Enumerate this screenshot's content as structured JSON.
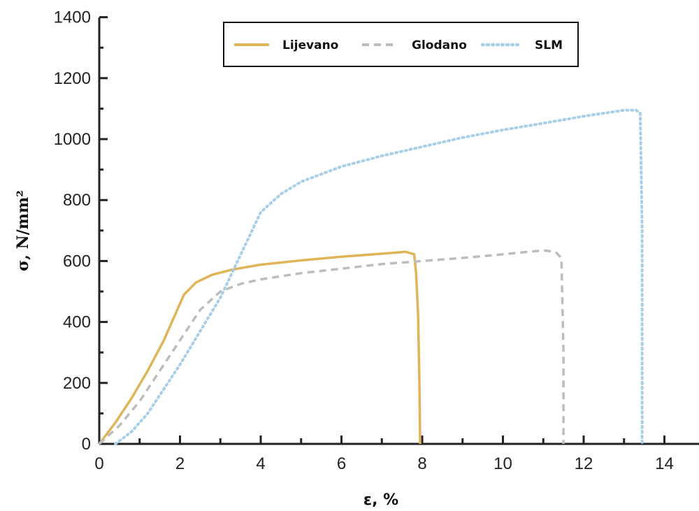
{
  "chart_data": {
    "type": "line",
    "xlabel": "ε, %",
    "ylabel": "σ, N/mm²",
    "xlim": [
      0,
      15
    ],
    "ylim": [
      0,
      1400
    ],
    "x_ticks": [
      0,
      2,
      4,
      6,
      8,
      10,
      12,
      14
    ],
    "y_ticks": [
      0,
      200,
      400,
      600,
      800,
      1000,
      1200,
      1400
    ],
    "legend_position": "top-center",
    "series": [
      {
        "name": "Lijevano",
        "color": "#e0b458",
        "style": "solid",
        "x": [
          0,
          0.4,
          0.8,
          1.2,
          1.6,
          1.9,
          2.1,
          2.4,
          2.8,
          3.3,
          4.0,
          5.0,
          6.0,
          7.0,
          7.6,
          7.8,
          7.85,
          7.9,
          7.93,
          7.95
        ],
        "y": [
          0,
          70,
          150,
          240,
          340,
          430,
          490,
          530,
          555,
          572,
          588,
          602,
          614,
          624,
          630,
          622,
          560,
          420,
          200,
          0
        ]
      },
      {
        "name": "Glodano",
        "color": "#bdbdbd",
        "style": "dashed",
        "x": [
          0,
          0.5,
          1.0,
          1.5,
          2.0,
          2.5,
          3.0,
          3.5,
          4.0,
          5.0,
          6.0,
          7.0,
          8.0,
          9.0,
          10.0,
          11.0,
          11.3,
          11.45,
          11.5,
          11.5
        ],
        "y": [
          0,
          60,
          140,
          240,
          340,
          440,
          500,
          525,
          540,
          560,
          575,
          590,
          600,
          610,
          622,
          635,
          630,
          610,
          300,
          0
        ]
      },
      {
        "name": "SLM",
        "color": "#a9cfe8",
        "style": "dotted",
        "x": [
          0.4,
          0.8,
          1.2,
          1.6,
          2.0,
          2.5,
          3.0,
          3.5,
          4.0,
          4.5,
          5.0,
          6.0,
          7.0,
          8.0,
          9.0,
          10.0,
          11.0,
          12.0,
          13.0,
          13.3,
          13.4,
          13.45,
          13.45
        ],
        "y": [
          0,
          40,
          100,
          180,
          260,
          370,
          480,
          620,
          760,
          820,
          860,
          910,
          945,
          975,
          1005,
          1030,
          1052,
          1075,
          1095,
          1095,
          1085,
          700,
          0
        ]
      }
    ]
  }
}
